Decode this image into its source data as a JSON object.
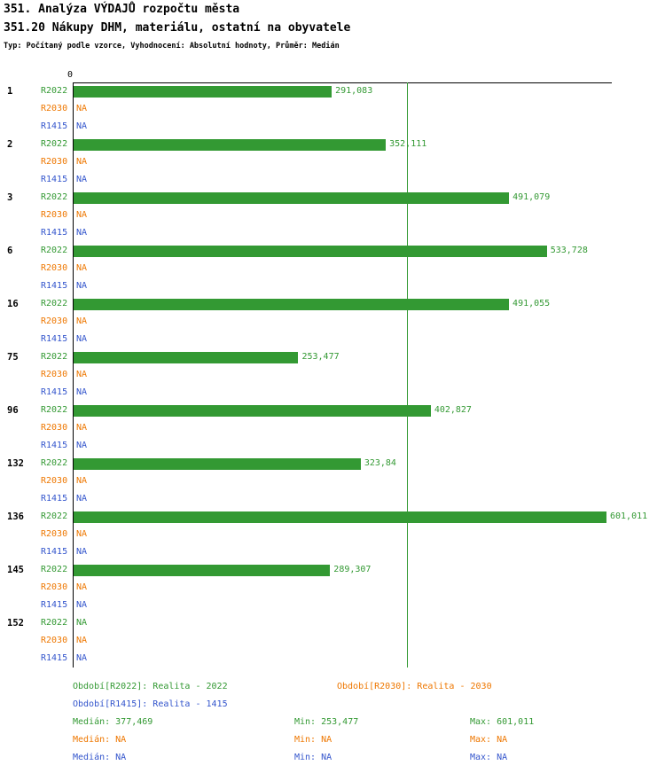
{
  "header": {
    "title_line1": "351. Analýza VÝDAJŮ rozpočtu města",
    "title_line2": "351.20 Nákupy DHM, materiálu, ostatní na obyvatele",
    "subtitle": "Typ: Počítaný podle vzorce, Vyhodnocení: Absolutní hodnoty, Průměr: Medián"
  },
  "colors": {
    "green": "#339933",
    "orange": "#EE7700",
    "blue": "#3355CC",
    "axis": "#000000"
  },
  "chart_data": {
    "type": "bar",
    "orientation": "horizontal",
    "axis_zero_label": "0",
    "median_value": 377.469,
    "xlim": [
      0,
      608
    ],
    "series": [
      {
        "key": "R2022",
        "color_key": "green",
        "legend": "Realita - 2022"
      },
      {
        "key": "R2030",
        "color_key": "orange",
        "legend": "Realita - 2030"
      },
      {
        "key": "R1415",
        "color_key": "blue",
        "legend": "Realita - 1415"
      }
    ],
    "groups": [
      {
        "id": "1",
        "bars": [
          {
            "value": 291.083,
            "display": "291,083"
          },
          {
            "value": null,
            "display": "NA"
          },
          {
            "value": null,
            "display": "NA"
          }
        ]
      },
      {
        "id": "2",
        "bars": [
          {
            "value": 352.111,
            "display": "352,111"
          },
          {
            "value": null,
            "display": "NA"
          },
          {
            "value": null,
            "display": "NA"
          }
        ]
      },
      {
        "id": "3",
        "bars": [
          {
            "value": 491.079,
            "display": "491,079"
          },
          {
            "value": null,
            "display": "NA"
          },
          {
            "value": null,
            "display": "NA"
          }
        ]
      },
      {
        "id": "6",
        "bars": [
          {
            "value": 533.728,
            "display": "533,728"
          },
          {
            "value": null,
            "display": "NA"
          },
          {
            "value": null,
            "display": "NA"
          }
        ]
      },
      {
        "id": "16",
        "bars": [
          {
            "value": 491.055,
            "display": "491,055"
          },
          {
            "value": null,
            "display": "NA"
          },
          {
            "value": null,
            "display": "NA"
          }
        ]
      },
      {
        "id": "75",
        "bars": [
          {
            "value": 253.477,
            "display": "253,477"
          },
          {
            "value": null,
            "display": "NA"
          },
          {
            "value": null,
            "display": "NA"
          }
        ]
      },
      {
        "id": "96",
        "bars": [
          {
            "value": 402.827,
            "display": "402,827"
          },
          {
            "value": null,
            "display": "NA"
          },
          {
            "value": null,
            "display": "NA"
          }
        ]
      },
      {
        "id": "132",
        "bars": [
          {
            "value": 323.84,
            "display": "323,84"
          },
          {
            "value": null,
            "display": "NA"
          },
          {
            "value": null,
            "display": "NA"
          }
        ]
      },
      {
        "id": "136",
        "bars": [
          {
            "value": 601.011,
            "display": "601,011"
          },
          {
            "value": null,
            "display": "NA"
          },
          {
            "value": null,
            "display": "NA"
          }
        ]
      },
      {
        "id": "145",
        "bars": [
          {
            "value": 289.307,
            "display": "289,307"
          },
          {
            "value": null,
            "display": "NA"
          },
          {
            "value": null,
            "display": "NA"
          }
        ]
      },
      {
        "id": "152",
        "bars": [
          {
            "value": null,
            "display": "NA"
          },
          {
            "value": null,
            "display": "NA"
          },
          {
            "value": null,
            "display": "NA"
          }
        ]
      }
    ]
  },
  "legend": {
    "row1": [
      {
        "text": "Období[R2022]: Realita - 2022",
        "color": "green"
      },
      {
        "text": "Období[R2030]: Realita - 2030",
        "color": "orange"
      }
    ],
    "row2": [
      {
        "text": "Období[R1415]: Realita - 1415",
        "color": "blue"
      }
    ]
  },
  "stats": [
    {
      "color": "green",
      "median": "Medián: 377,469",
      "min": "Min: 253,477",
      "max": "Max: 601,011"
    },
    {
      "color": "orange",
      "median": "Medián: NA",
      "min": "Min: NA",
      "max": "Max: NA"
    },
    {
      "color": "blue",
      "median": "Medián: NA",
      "min": "Min: NA",
      "max": "Max: NA"
    }
  ]
}
